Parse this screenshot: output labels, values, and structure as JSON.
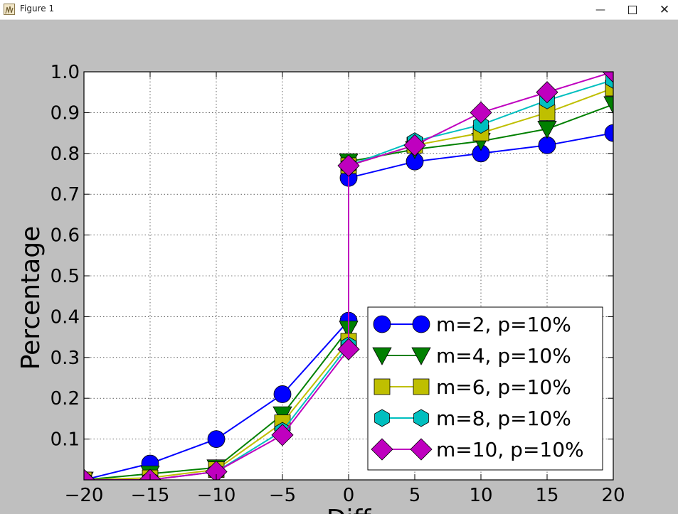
{
  "window": {
    "title": "Figure 1",
    "icons": {
      "app": "matplotlib-figure-icon",
      "minimize": "minimize-icon",
      "maximize": "maximize-icon",
      "close": "close-icon"
    }
  },
  "chart_data": {
    "type": "line",
    "title": "",
    "xlabel": "Diff",
    "ylabel": "Percentage",
    "xlim": [
      -20,
      20
    ],
    "ylim": [
      0,
      1.0
    ],
    "xticks": [
      -20,
      -15,
      -10,
      -5,
      0,
      5,
      10,
      15,
      20
    ],
    "yticks": [
      0.1,
      0.2,
      0.3,
      0.4,
      0.5,
      0.6,
      0.7,
      0.8,
      0.9,
      1.0
    ],
    "xtick_labels": [
      "−20",
      "−15",
      "−10",
      "−5",
      "0",
      "5",
      "10",
      "15",
      "20"
    ],
    "ytick_labels": [
      "0.1",
      "0.2",
      "0.3",
      "0.4",
      "0.5",
      "0.6",
      "0.7",
      "0.8",
      "0.9",
      "1.0"
    ],
    "grid": true,
    "legend_position": "lower-right",
    "series": [
      {
        "name": "m=2, p=10%",
        "color": "#0000ff",
        "marker": "circle",
        "x": [
          -20,
          -15,
          -10,
          -5,
          0,
          0,
          5,
          10,
          15,
          20
        ],
        "y": [
          0.0,
          0.04,
          0.1,
          0.21,
          0.39,
          0.74,
          0.78,
          0.8,
          0.82,
          0.85
        ]
      },
      {
        "name": "m=4, p=10%",
        "color": "#008000",
        "marker": "triangle-down",
        "x": [
          -20,
          -15,
          -10,
          -5,
          0,
          0,
          5,
          10,
          15,
          20
        ],
        "y": [
          0.0,
          0.015,
          0.03,
          0.16,
          0.37,
          0.78,
          0.81,
          0.83,
          0.86,
          0.92
        ]
      },
      {
        "name": "m=6, p=10%",
        "color": "#bfbf00",
        "marker": "square",
        "x": [
          -20,
          -15,
          -10,
          -5,
          0,
          0,
          5,
          10,
          15,
          20
        ],
        "y": [
          0.0,
          0.005,
          0.025,
          0.14,
          0.34,
          0.77,
          0.82,
          0.85,
          0.9,
          0.96
        ]
      },
      {
        "name": "m=8, p=10%",
        "color": "#00bfbf",
        "marker": "hexagon",
        "x": [
          -20,
          -15,
          -10,
          -5,
          0,
          0,
          5,
          10,
          15,
          20
        ],
        "y": [
          0.0,
          0.0,
          0.02,
          0.12,
          0.33,
          0.77,
          0.83,
          0.87,
          0.93,
          0.98
        ]
      },
      {
        "name": "m=10, p=10%",
        "color": "#bf00bf",
        "marker": "diamond",
        "x": [
          -20,
          -15,
          -10,
          -5,
          0,
          0,
          5,
          10,
          15,
          20
        ],
        "y": [
          0.0,
          0.0,
          0.02,
          0.11,
          0.32,
          0.77,
          0.82,
          0.9,
          0.95,
          1.0
        ]
      }
    ]
  }
}
